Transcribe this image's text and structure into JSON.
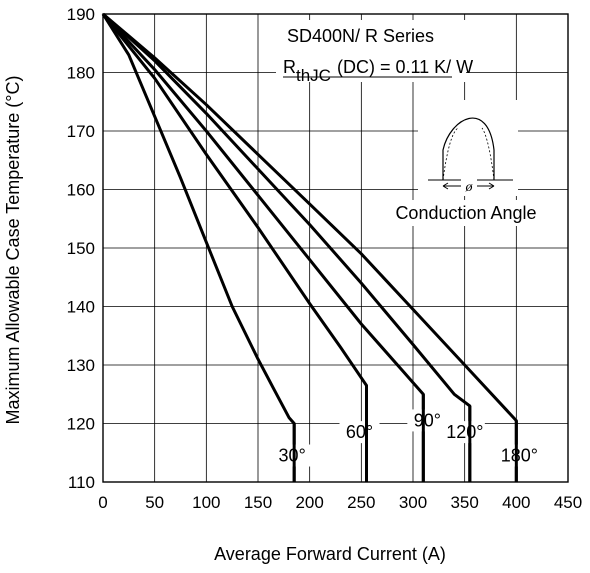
{
  "chart_data": {
    "type": "line",
    "title": "",
    "xlabel": "Average Forward Current (A)",
    "ylabel": "Maximum Allowable Case Temperature (°C)",
    "xlim": [
      0,
      450
    ],
    "ylim": [
      110,
      190
    ],
    "xticks": [
      0,
      50,
      100,
      150,
      200,
      250,
      300,
      350,
      400,
      450
    ],
    "yticks": [
      110,
      120,
      130,
      140,
      150,
      160,
      170,
      180,
      190
    ],
    "grid": true,
    "series": [
      {
        "name": "30°",
        "x": [
          0,
          25,
          50,
          75,
          100,
          125,
          150,
          165,
          180,
          185,
          185
        ],
        "y": [
          190,
          183,
          172.5,
          162,
          151,
          140,
          131,
          126,
          121,
          120,
          110
        ]
      },
      {
        "name": "60°",
        "x": [
          0,
          50,
          100,
          150,
          200,
          230,
          255,
          255
        ],
        "y": [
          190,
          179,
          166,
          153.5,
          140.5,
          133,
          126.5,
          110
        ]
      },
      {
        "name": "90°",
        "x": [
          0,
          50,
          100,
          150,
          200,
          250,
          290,
          310,
          310
        ],
        "y": [
          190,
          180.5,
          170,
          159,
          148,
          137,
          129,
          125,
          110
        ]
      },
      {
        "name": "120°",
        "x": [
          0,
          50,
          100,
          150,
          200,
          250,
          300,
          340,
          355,
          355
        ],
        "y": [
          190,
          182,
          173,
          163.5,
          154,
          144,
          133.5,
          125,
          123,
          110
        ]
      },
      {
        "name": "180°",
        "x": [
          0,
          50,
          100,
          150,
          200,
          250,
          300,
          350,
          400,
          400
        ],
        "y": [
          190,
          182.5,
          174.5,
          166,
          157.5,
          149,
          139.5,
          130,
          120.5,
          110
        ]
      }
    ],
    "curve_labels": [
      "30°",
      "60°",
      "90°",
      "120°",
      "180°"
    ],
    "annotations": {
      "series_line": "SD400N/ R Series",
      "rthjc_r": "R",
      "rthjc_sub": "thJC",
      "rthjc_rest": "(DC) = 0.11 K/ W",
      "conduction": "Conduction Angle",
      "theta_symbol": "ø"
    }
  }
}
